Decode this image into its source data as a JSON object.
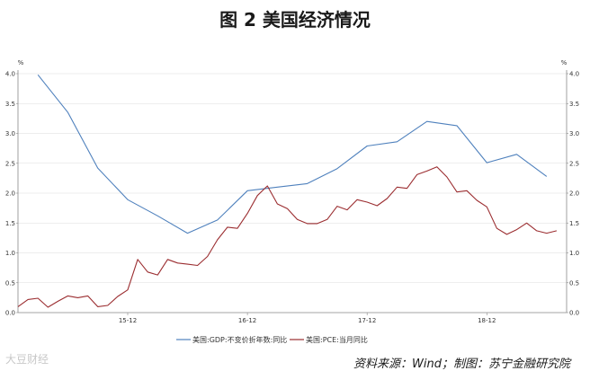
{
  "title": "图 2  美国经济情况",
  "source_note": "资料来源：Wind；制图：苏宁金融研究院",
  "watermark": "大豆财经",
  "colors": {
    "gdp": "#4f81bd",
    "pce": "#9b2d30",
    "grid": "#dcdcdc",
    "axis": "#888888"
  },
  "chart_data": {
    "type": "line",
    "y_unit_left": "%",
    "y_unit_right": "%",
    "ylim": [
      0,
      4.0
    ],
    "y_ticks": [
      "0.0",
      "0.5",
      "1.0",
      "1.5",
      "2.0",
      "2.5",
      "3.0",
      "3.5",
      "4.0"
    ],
    "x_tick_labels": [
      {
        "label": "15-12",
        "month": "2015-12"
      },
      {
        "label": "16-12",
        "month": "2016-12"
      },
      {
        "label": "17-12",
        "month": "2017-12"
      },
      {
        "label": "18-12",
        "month": "2018-12"
      }
    ],
    "grid": "horizontal",
    "legend_position": "bottom",
    "series": [
      {
        "name": "美国:GDP:不变价折年数:同比",
        "color": "#4f81bd",
        "points": [
          [
            "2015-03",
            3.98
          ],
          [
            "2015-06",
            3.35
          ],
          [
            "2015-09",
            2.42
          ],
          [
            "2015-12",
            1.89
          ],
          [
            "2016-03",
            1.62
          ],
          [
            "2016-06",
            1.33
          ],
          [
            "2016-09",
            1.55
          ],
          [
            "2016-12",
            2.04
          ],
          [
            "2017-03",
            2.1
          ],
          [
            "2017-06",
            2.16
          ],
          [
            "2017-09",
            2.41
          ],
          [
            "2017-12",
            2.79
          ],
          [
            "2018-03",
            2.86
          ],
          [
            "2018-06",
            3.2
          ],
          [
            "2018-09",
            3.13
          ],
          [
            "2018-12",
            2.51
          ],
          [
            "2019-03",
            2.65
          ],
          [
            "2019-06",
            2.28
          ]
        ]
      },
      {
        "name": "美国:PCE:当月同比",
        "color": "#9b2d30",
        "points": [
          [
            "2015-01",
            0.1
          ],
          [
            "2015-02",
            0.22
          ],
          [
            "2015-03",
            0.24
          ],
          [
            "2015-04",
            0.09
          ],
          [
            "2015-05",
            0.19
          ],
          [
            "2015-06",
            0.28
          ],
          [
            "2015-07",
            0.25
          ],
          [
            "2015-08",
            0.28
          ],
          [
            "2015-09",
            0.1
          ],
          [
            "2015-10",
            0.12
          ],
          [
            "2015-11",
            0.27
          ],
          [
            "2015-12",
            0.38
          ],
          [
            "2016-01",
            0.89
          ],
          [
            "2016-02",
            0.68
          ],
          [
            "2016-03",
            0.63
          ],
          [
            "2016-04",
            0.89
          ],
          [
            "2016-05",
            0.83
          ],
          [
            "2016-06",
            0.81
          ],
          [
            "2016-07",
            0.79
          ],
          [
            "2016-08",
            0.94
          ],
          [
            "2016-09",
            1.22
          ],
          [
            "2016-10",
            1.43
          ],
          [
            "2016-11",
            1.41
          ],
          [
            "2016-12",
            1.66
          ],
          [
            "2017-01",
            1.96
          ],
          [
            "2017-02",
            2.12
          ],
          [
            "2017-03",
            1.82
          ],
          [
            "2017-04",
            1.74
          ],
          [
            "2017-05",
            1.56
          ],
          [
            "2017-06",
            1.49
          ],
          [
            "2017-07",
            1.49
          ],
          [
            "2017-08",
            1.56
          ],
          [
            "2017-09",
            1.78
          ],
          [
            "2017-10",
            1.72
          ],
          [
            "2017-11",
            1.89
          ],
          [
            "2017-12",
            1.85
          ],
          [
            "2018-01",
            1.79
          ],
          [
            "2018-02",
            1.91
          ],
          [
            "2018-03",
            2.1
          ],
          [
            "2018-04",
            2.08
          ],
          [
            "2018-05",
            2.31
          ],
          [
            "2018-06",
            2.37
          ],
          [
            "2018-07",
            2.44
          ],
          [
            "2018-08",
            2.27
          ],
          [
            "2018-09",
            2.02
          ],
          [
            "2018-10",
            2.04
          ],
          [
            "2018-11",
            1.88
          ],
          [
            "2018-12",
            1.77
          ],
          [
            "2019-01",
            1.41
          ],
          [
            "2019-02",
            1.31
          ],
          [
            "2019-03",
            1.39
          ],
          [
            "2019-04",
            1.5
          ],
          [
            "2019-05",
            1.37
          ],
          [
            "2019-06",
            1.33
          ],
          [
            "2019-07",
            1.37
          ]
        ]
      }
    ]
  }
}
